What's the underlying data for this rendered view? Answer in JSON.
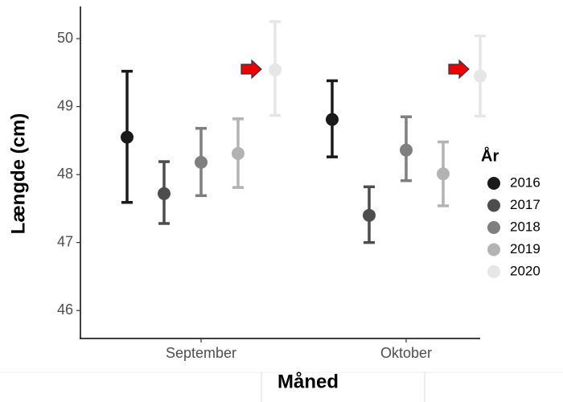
{
  "chart_data": {
    "type": "errorbar",
    "x_label": "Måned",
    "y_label": "Længde (cm)",
    "legend_title": "År",
    "categories": [
      "September",
      "Oktober"
    ],
    "ylim": [
      45.6,
      50.45
    ],
    "yticks": [
      46,
      47,
      48,
      49,
      50
    ],
    "legend_position": "right",
    "series": [
      {
        "name": "2016",
        "color": "#1a1a1a",
        "values": [
          48.55,
          48.81
        ],
        "lower": [
          47.59,
          48.26
        ],
        "upper": [
          49.52,
          49.38
        ]
      },
      {
        "name": "2017",
        "color": "#4d4d4d",
        "values": [
          47.72,
          47.4
        ],
        "lower": [
          47.28,
          47.0
        ],
        "upper": [
          48.19,
          47.82
        ]
      },
      {
        "name": "2018",
        "color": "#7f7f7f",
        "values": [
          48.18,
          48.36
        ],
        "lower": [
          47.69,
          47.91
        ],
        "upper": [
          48.68,
          48.85
        ]
      },
      {
        "name": "2019",
        "color": "#b3b3b3",
        "values": [
          48.31,
          48.01
        ],
        "lower": [
          47.81,
          47.54
        ],
        "upper": [
          48.82,
          48.48
        ]
      },
      {
        "name": "2020",
        "color": "#e6e6e6",
        "values": [
          49.54,
          49.45
        ],
        "lower": [
          48.87,
          48.86
        ],
        "upper": [
          50.25,
          50.04
        ]
      }
    ]
  }
}
